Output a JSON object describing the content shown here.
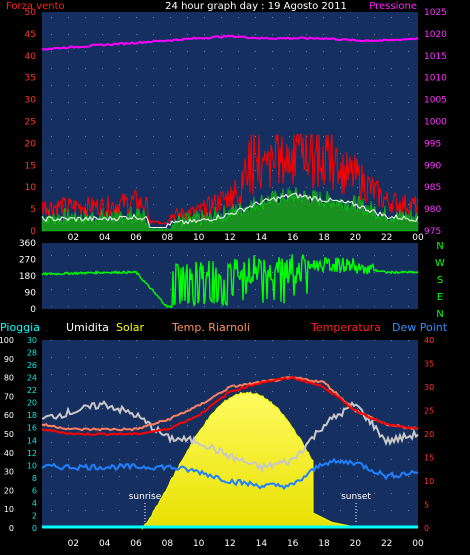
{
  "title": "24 hour graph day : 19 Agosto 2011",
  "x_ticks": [
    "02",
    "04",
    "06",
    "08",
    "10",
    "12",
    "14",
    "16",
    "18",
    "20",
    "22",
    "00"
  ],
  "colors": {
    "wind": "#ff0000",
    "gust": "#00ff00",
    "avg": "#ffffff",
    "pressure": "#ff00ff",
    "direction": "#00ff00",
    "humidity": "#c8c8c8",
    "temperature": "#ff0000",
    "feels": "#ff8060",
    "dewpoint": "#2080ff",
    "solar": "#ffff00",
    "rain": "#00ffff"
  },
  "top": {
    "left_label": "Forza vento",
    "right_label": "Pressione",
    "left_ticks": [
      "0",
      "5",
      "10",
      "15",
      "20",
      "25",
      "30",
      "35",
      "40",
      "45",
      "50"
    ],
    "right_ticks": [
      "975",
      "980",
      "985",
      "990",
      "995",
      "1000",
      "1005",
      "1010",
      "1015",
      "1020",
      "1025"
    ]
  },
  "mid": {
    "left_ticks": [
      "0",
      "90",
      "180",
      "270",
      "360"
    ],
    "compass": [
      "N",
      "W",
      "S",
      "E",
      "N"
    ]
  },
  "bottom": {
    "legend": {
      "rain": "Pioggia",
      "humidity": "Umidita",
      "solar": "Solar",
      "feels": "Temp. Riarnoli",
      "temperature": "Temperatura",
      "dewpoint": "Dew Point"
    },
    "left_ticks_hum": [
      "0",
      "10",
      "20",
      "30",
      "40",
      "50",
      "60",
      "70",
      "80",
      "90",
      "100"
    ],
    "left_ticks_rain": [
      "0",
      "2",
      "4",
      "6",
      "8",
      "10",
      "12",
      "14",
      "16",
      "18",
      "20",
      "22",
      "24",
      "26",
      "28",
      "30"
    ],
    "right_ticks": [
      "0",
      "5",
      "10",
      "15",
      "20",
      "25",
      "30",
      "35",
      "40"
    ],
    "sunrise_label": "sunrise",
    "sunset_label": "sunset"
  },
  "chart_data": [
    {
      "type": "line",
      "title": "24 hour graph day : 19 Agosto 2011",
      "x": [
        0,
        2,
        4,
        6,
        8,
        10,
        12,
        14,
        16,
        18,
        20,
        22,
        24
      ],
      "xlabel": "",
      "ylabel": "Forza vento",
      "ylim": [
        0,
        50
      ],
      "y2label": "Pressione",
      "y2lim": [
        975,
        1025
      ],
      "series": [
        {
          "name": "Forza vento",
          "values": [
            5,
            5,
            5,
            6,
            3,
            4,
            7,
            12,
            15,
            13,
            11,
            6,
            5
          ]
        },
        {
          "name": "Pressione",
          "values": [
            1016.5,
            1017,
            1017.5,
            1018,
            1018.5,
            1019,
            1019.5,
            1019,
            1019,
            1019,
            1018.5,
            1018.5,
            1019
          ]
        }
      ]
    },
    {
      "type": "line",
      "x": [
        0,
        2,
        4,
        6,
        8,
        10,
        12,
        14,
        16,
        18,
        20,
        22,
        24
      ],
      "ylabel": "",
      "ylim": [
        0,
        360
      ],
      "series": [
        {
          "values": [
            190,
            195,
            200,
            200,
            10,
            40,
            230,
            220,
            200,
            210,
            230,
            200,
            200
          ]
        }
      ]
    },
    {
      "type": "line",
      "x": [
        0,
        2,
        4,
        6,
        8,
        10,
        12,
        14,
        16,
        18,
        20,
        22,
        24
      ],
      "ylim": [
        0,
        100
      ],
      "y2lim": [
        0,
        40
      ],
      "series": [
        {
          "name": "Umidita",
          "values": [
            58,
            62,
            66,
            60,
            48,
            46,
            38,
            32,
            36,
            55,
            66,
            46,
            50
          ]
        },
        {
          "name": "Temperatura",
          "values": [
            21,
            20,
            20,
            20,
            21,
            24,
            29,
            31,
            32,
            30,
            25,
            22,
            21
          ]
        },
        {
          "name": "Temp. Riarnoli",
          "values": [
            22,
            21,
            21,
            21,
            23,
            26,
            30,
            31,
            32,
            31,
            25,
            22,
            21
          ]
        },
        {
          "name": "Dew Point",
          "values": [
            13,
            13,
            13,
            13,
            13,
            12,
            10,
            9,
            9,
            14,
            14,
            11,
            12
          ]
        },
        {
          "name": "Solar",
          "values": [
            0,
            0,
            0,
            0,
            5,
            40,
            68,
            72,
            50,
            5,
            0,
            0,
            0
          ]
        },
        {
          "name": "Pioggia",
          "values": [
            0,
            0,
            0,
            0,
            0,
            0,
            0,
            0,
            0,
            0,
            0,
            0,
            0
          ]
        }
      ]
    }
  ]
}
